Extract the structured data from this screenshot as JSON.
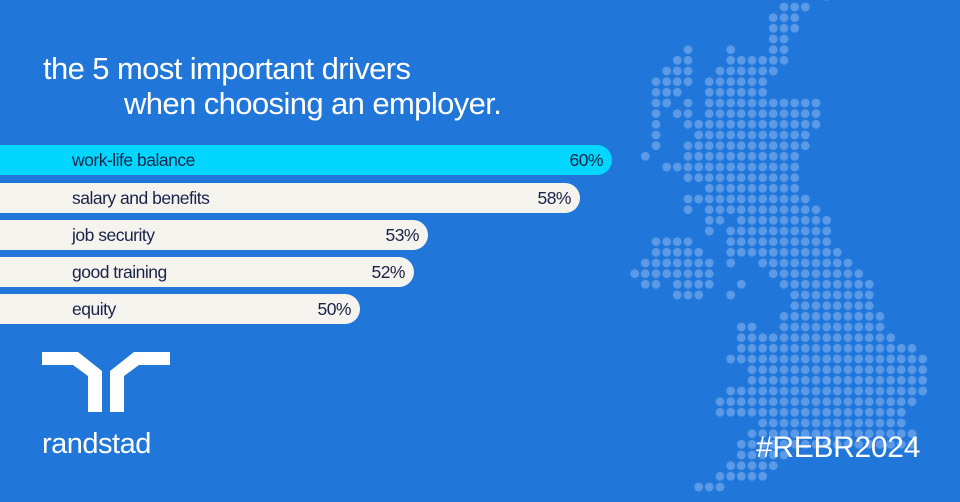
{
  "title": {
    "line1": "the 5 most important drivers",
    "line2": "when choosing an employer."
  },
  "colors": {
    "background": "#2176d9",
    "highlight_bar": "#00d6fe",
    "bar": "#f5f3ee",
    "bar_text": "#1b2248",
    "map_dot": "#5b9ae6"
  },
  "bars": [
    {
      "label": "work-life balance",
      "value_label": "60%",
      "highlight": true
    },
    {
      "label": "salary and benefits",
      "value_label": "58%",
      "highlight": false
    },
    {
      "label": "job security",
      "value_label": "53%",
      "highlight": false
    },
    {
      "label": "good training",
      "value_label": "52%",
      "highlight": false
    },
    {
      "label": "equity",
      "value_label": "50%",
      "highlight": false
    }
  ],
  "chart_data": {
    "type": "bar",
    "orientation": "horizontal",
    "title": "the 5 most important drivers when choosing an employer.",
    "categories": [
      "work-life balance",
      "salary and benefits",
      "job security",
      "good training",
      "equity"
    ],
    "values": [
      60,
      58,
      53,
      52,
      50
    ],
    "unit": "%",
    "xlabel": "",
    "ylabel": "",
    "grid": false,
    "legend": null,
    "highlighted_category": "work-life balance"
  },
  "brand": {
    "name": "randstad",
    "logo_icon": "randstad-logo-mark"
  },
  "hashtag": "#REBR2024",
  "map": {
    "icon": "uk-dot-map"
  }
}
